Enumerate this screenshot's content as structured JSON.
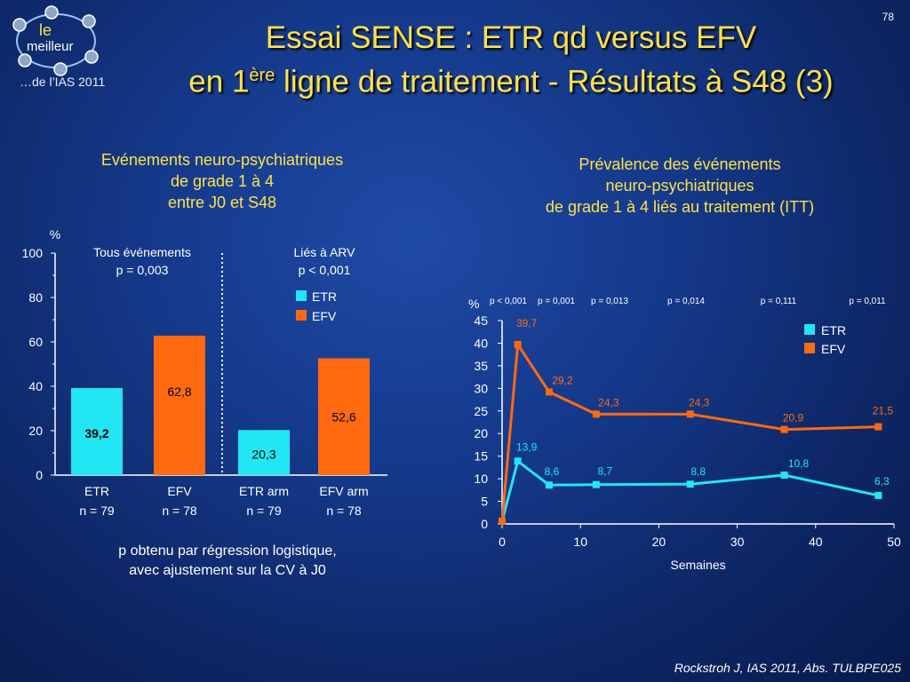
{
  "slide": {
    "number": "78",
    "title_line1": "Essai SENSE : ETR qd versus EFV",
    "title_line2_a": "en 1",
    "title_line2_sup": "ère",
    "title_line2_b": " ligne de traitement - Résultats à S48 (3)",
    "logo_le": "le",
    "logo_meilleur": "meilleur",
    "logo_sub": "…de l’IAS 2011",
    "citation": "Rockstroh J, IAS 2011, Abs. TULBPE025"
  },
  "left_panel": {
    "subtitle": [
      "Evénements neuro-psychiatriques",
      "de grade 1 à 4",
      "entre J0 et S48"
    ],
    "footnote": [
      "p obtenu par régression logistique,",
      "avec ajustement sur la CV à J0"
    ]
  },
  "right_panel": {
    "subtitle": [
      "Prévalence des événements",
      "neuro-psychiatriques",
      "de grade 1 à 4 liés au traitement (ITT)"
    ]
  },
  "colors": {
    "etr": "#22e6f2",
    "efv": "#ff6a10",
    "title": "#ffe14a"
  },
  "chart_data": [
    {
      "type": "bar",
      "ylabel": "%",
      "ylim": [
        0,
        100
      ],
      "yticks": [
        0,
        20,
        40,
        60,
        80,
        100
      ],
      "groups": [
        {
          "label_line1": "Tous événements",
          "label_line2": "p = 0,003"
        },
        {
          "label_line1": "Liés à ARV",
          "label_line2": "p < 0,001"
        }
      ],
      "legend": [
        "ETR",
        "EFV"
      ],
      "bars": [
        {
          "series": "ETR",
          "value": 39.2,
          "value_label": "39,2",
          "cat_line1": "ETR",
          "cat_line2": "n = 79"
        },
        {
          "series": "EFV",
          "value": 62.8,
          "value_label": "62,8",
          "cat_line1": "EFV",
          "cat_line2": "n = 78"
        },
        {
          "series": "ETR",
          "value": 20.3,
          "value_label": "20,3",
          "cat_line1": "ETR arm",
          "cat_line2": "n = 79"
        },
        {
          "series": "EFV",
          "value": 52.6,
          "value_label": "52,6",
          "cat_line1": "EFV arm",
          "cat_line2": "n = 78"
        }
      ]
    },
    {
      "type": "line",
      "ylabel": "%",
      "xlabel": "Semaines",
      "xlim": [
        0,
        50
      ],
      "ylim": [
        0,
        45
      ],
      "xticks": [
        0,
        10,
        20,
        30,
        40,
        50
      ],
      "yticks": [
        0,
        5,
        10,
        15,
        20,
        25,
        30,
        35,
        40,
        45
      ],
      "p_values": [
        "p < 0,001",
        "p = 0,001",
        "p = 0,013",
        "p = 0,014",
        "p = 0,111",
        "p = 0,011"
      ],
      "legend": [
        "ETR",
        "EFV"
      ],
      "series": [
        {
          "name": "ETR",
          "x": [
            0,
            2,
            6,
            12,
            24,
            36,
            48
          ],
          "y": [
            0.6,
            13.9,
            8.6,
            8.7,
            8.8,
            10.8,
            6.3
          ],
          "labels": [
            "",
            "13,9",
            "8,6",
            "8,7",
            "8,8",
            "10,8",
            "6,3"
          ]
        },
        {
          "name": "EFV",
          "x": [
            0,
            2,
            6,
            12,
            24,
            36,
            48
          ],
          "y": [
            0.6,
            39.7,
            29.2,
            24.3,
            24.3,
            20.9,
            21.5
          ],
          "labels": [
            "",
            "39,7",
            "29,2",
            "24,3",
            "24,3",
            "20,9",
            "21,5"
          ]
        }
      ]
    }
  ]
}
